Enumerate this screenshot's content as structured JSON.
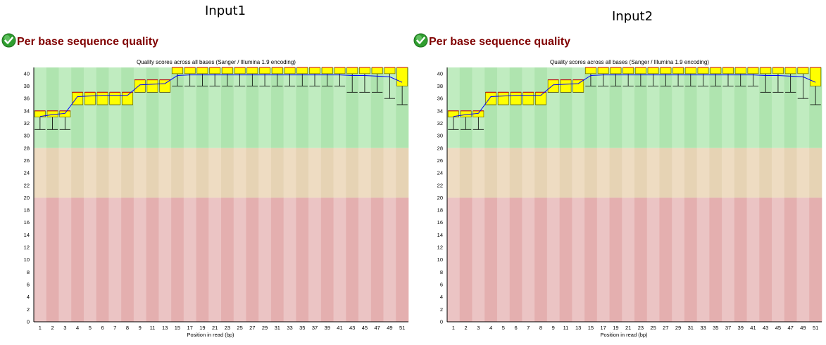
{
  "panels": [
    {
      "label": "Input1",
      "module_title": "Per base sequence quality",
      "status_icon": "pass-check-icon"
    },
    {
      "label": "Input2",
      "module_title": "Per base sequence quality",
      "status_icon": "pass-check-icon"
    }
  ],
  "colors": {
    "title": "#800000",
    "good_zone": [
      "#c0ecc0",
      "#afe4af"
    ],
    "warn_zone": [
      "#eedcc2",
      "#e6d3b4"
    ],
    "bad_zone": [
      "#ebc4c4",
      "#e4afaf"
    ],
    "box": "#ffff00",
    "box_stroke": "#666600",
    "whisker": "#000000",
    "median": "#cc0000",
    "mean_line": "#0000ff"
  },
  "chart_data": [
    {
      "type": "box",
      "title": "Quality scores across all bases (Sanger / Illumina 1.9 encoding)",
      "xlabel": "Position in read (bp)",
      "ylabel": "",
      "ylim": [
        0,
        41
      ],
      "yticks": [
        0,
        2,
        4,
        6,
        8,
        10,
        12,
        14,
        16,
        18,
        20,
        22,
        24,
        26,
        28,
        30,
        32,
        34,
        36,
        38,
        40
      ],
      "xticks": [
        "1",
        "2",
        "3",
        "4",
        "5",
        "6",
        "7",
        "8",
        "9",
        "11",
        "13",
        "15",
        "17",
        "19",
        "21",
        "23",
        "25",
        "27",
        "29",
        "31",
        "33",
        "35",
        "37",
        "39",
        "41",
        "43",
        "45",
        "47",
        "49",
        "51"
      ],
      "zones": {
        "good": [
          28,
          41
        ],
        "warn": [
          20,
          28
        ],
        "bad": [
          0,
          20
        ]
      },
      "boxes": [
        {
          "x": "1",
          "q1": 33,
          "q3": 34,
          "median": 34,
          "low": 31,
          "high": 34,
          "mean": 33.1
        },
        {
          "x": "2",
          "q1": 33,
          "q3": 34,
          "median": 34,
          "low": 31,
          "high": 34,
          "mean": 33.4
        },
        {
          "x": "3",
          "q1": 33,
          "q3": 34,
          "median": 34,
          "low": 31,
          "high": 34,
          "mean": 33.6
        },
        {
          "x": "4",
          "q1": 35,
          "q3": 37,
          "median": 37,
          "low": 35,
          "high": 37,
          "mean": 36.3
        },
        {
          "x": "5",
          "q1": 35,
          "q3": 37,
          "median": 37,
          "low": 35,
          "high": 37,
          "mean": 36.4
        },
        {
          "x": "6",
          "q1": 35,
          "q3": 37,
          "median": 37,
          "low": 35,
          "high": 37,
          "mean": 36.5
        },
        {
          "x": "7",
          "q1": 35,
          "q3": 37,
          "median": 37,
          "low": 35,
          "high": 37,
          "mean": 36.5
        },
        {
          "x": "8",
          "q1": 35,
          "q3": 37,
          "median": 37,
          "low": 35,
          "high": 37,
          "mean": 36.5
        },
        {
          "x": "9",
          "q1": 37,
          "q3": 39,
          "median": 39,
          "low": 37,
          "high": 39,
          "mean": 38.2
        },
        {
          "x": "10-11",
          "q1": 37,
          "q3": 39,
          "median": 39,
          "low": 37,
          "high": 39,
          "mean": 38.3
        },
        {
          "x": "12-13",
          "q1": 37,
          "q3": 39,
          "median": 39,
          "low": 37,
          "high": 39,
          "mean": 38.4
        },
        {
          "x": "14-15",
          "q1": 40,
          "q3": 41,
          "median": 41,
          "low": 38,
          "high": 41,
          "mean": 39.7
        },
        {
          "x": "16-17",
          "q1": 40,
          "q3": 41,
          "median": 41,
          "low": 38,
          "high": 41,
          "mean": 39.8
        },
        {
          "x": "18-19",
          "q1": 40,
          "q3": 41,
          "median": 41,
          "low": 38,
          "high": 41,
          "mean": 39.8
        },
        {
          "x": "20-21",
          "q1": 40,
          "q3": 41,
          "median": 41,
          "low": 38,
          "high": 41,
          "mean": 39.8
        },
        {
          "x": "22-23",
          "q1": 40,
          "q3": 41,
          "median": 41,
          "low": 38,
          "high": 41,
          "mean": 39.8
        },
        {
          "x": "24-25",
          "q1": 40,
          "q3": 41,
          "median": 41,
          "low": 38,
          "high": 41,
          "mean": 39.8
        },
        {
          "x": "26-27",
          "q1": 40,
          "q3": 41,
          "median": 41,
          "low": 38,
          "high": 41,
          "mean": 39.8
        },
        {
          "x": "28-29",
          "q1": 40,
          "q3": 41,
          "median": 41,
          "low": 38,
          "high": 41,
          "mean": 39.8
        },
        {
          "x": "30-31",
          "q1": 40,
          "q3": 41,
          "median": 41,
          "low": 38,
          "high": 41,
          "mean": 39.8
        },
        {
          "x": "32-33",
          "q1": 40,
          "q3": 41,
          "median": 41,
          "low": 38,
          "high": 41,
          "mean": 39.8
        },
        {
          "x": "34-35",
          "q1": 40,
          "q3": 41,
          "median": 41,
          "low": 38,
          "high": 41,
          "mean": 39.8
        },
        {
          "x": "36-37",
          "q1": 40,
          "q3": 41,
          "median": 41,
          "low": 38,
          "high": 41,
          "mean": 39.8
        },
        {
          "x": "38-39",
          "q1": 40,
          "q3": 41,
          "median": 41,
          "low": 38,
          "high": 41,
          "mean": 39.8
        },
        {
          "x": "40-41",
          "q1": 40,
          "q3": 41,
          "median": 41,
          "low": 38,
          "high": 41,
          "mean": 39.8
        },
        {
          "x": "42-43",
          "q1": 40,
          "q3": 41,
          "median": 41,
          "low": 37,
          "high": 41,
          "mean": 39.7
        },
        {
          "x": "44-45",
          "q1": 40,
          "q3": 41,
          "median": 41,
          "low": 37,
          "high": 41,
          "mean": 39.7
        },
        {
          "x": "46-47",
          "q1": 40,
          "q3": 41,
          "median": 41,
          "low": 37,
          "high": 41,
          "mean": 39.6
        },
        {
          "x": "48-49",
          "q1": 40,
          "q3": 41,
          "median": 41,
          "low": 36,
          "high": 41,
          "mean": 39.5
        },
        {
          "x": "50-51",
          "q1": 38,
          "q3": 41,
          "median": 41,
          "low": 35,
          "high": 41,
          "mean": 38.6
        }
      ]
    },
    {
      "type": "box",
      "title": "Quality scores across all bases (Sanger / Illumina 1.9 encoding)",
      "xlabel": "Position in read (bp)",
      "ylabel": "",
      "ylim": [
        0,
        41
      ],
      "yticks": [
        0,
        2,
        4,
        6,
        8,
        10,
        12,
        14,
        16,
        18,
        20,
        22,
        24,
        26,
        28,
        30,
        32,
        34,
        36,
        38,
        40
      ],
      "xticks": [
        "1",
        "2",
        "3",
        "4",
        "5",
        "6",
        "7",
        "8",
        "9",
        "11",
        "13",
        "15",
        "17",
        "19",
        "21",
        "23",
        "25",
        "27",
        "29",
        "31",
        "33",
        "35",
        "37",
        "39",
        "41",
        "43",
        "45",
        "47",
        "49",
        "51"
      ],
      "zones": {
        "good": [
          28,
          41
        ],
        "warn": [
          20,
          28
        ],
        "bad": [
          0,
          20
        ]
      },
      "boxes": [
        {
          "x": "1",
          "q1": 33,
          "q3": 34,
          "median": 34,
          "low": 31,
          "high": 34,
          "mean": 33.1
        },
        {
          "x": "2",
          "q1": 33,
          "q3": 34,
          "median": 34,
          "low": 31,
          "high": 34,
          "mean": 33.4
        },
        {
          "x": "3",
          "q1": 33,
          "q3": 34,
          "median": 34,
          "low": 31,
          "high": 34,
          "mean": 33.6
        },
        {
          "x": "4",
          "q1": 35,
          "q3": 37,
          "median": 37,
          "low": 35,
          "high": 37,
          "mean": 36.3
        },
        {
          "x": "5",
          "q1": 35,
          "q3": 37,
          "median": 37,
          "low": 35,
          "high": 37,
          "mean": 36.4
        },
        {
          "x": "6",
          "q1": 35,
          "q3": 37,
          "median": 37,
          "low": 35,
          "high": 37,
          "mean": 36.5
        },
        {
          "x": "7",
          "q1": 35,
          "q3": 37,
          "median": 37,
          "low": 35,
          "high": 37,
          "mean": 36.5
        },
        {
          "x": "8",
          "q1": 35,
          "q3": 37,
          "median": 37,
          "low": 35,
          "high": 37,
          "mean": 36.5
        },
        {
          "x": "9",
          "q1": 37,
          "q3": 39,
          "median": 39,
          "low": 37,
          "high": 39,
          "mean": 38.2
        },
        {
          "x": "10-11",
          "q1": 37,
          "q3": 39,
          "median": 39,
          "low": 37,
          "high": 39,
          "mean": 38.3
        },
        {
          "x": "12-13",
          "q1": 37,
          "q3": 39,
          "median": 39,
          "low": 37,
          "high": 39,
          "mean": 38.4
        },
        {
          "x": "14-15",
          "q1": 40,
          "q3": 41,
          "median": 41,
          "low": 38,
          "high": 41,
          "mean": 39.7
        },
        {
          "x": "16-17",
          "q1": 40,
          "q3": 41,
          "median": 41,
          "low": 38,
          "high": 41,
          "mean": 39.8
        },
        {
          "x": "18-19",
          "q1": 40,
          "q3": 41,
          "median": 41,
          "low": 38,
          "high": 41,
          "mean": 39.8
        },
        {
          "x": "20-21",
          "q1": 40,
          "q3": 41,
          "median": 41,
          "low": 38,
          "high": 41,
          "mean": 39.8
        },
        {
          "x": "22-23",
          "q1": 40,
          "q3": 41,
          "median": 41,
          "low": 38,
          "high": 41,
          "mean": 39.8
        },
        {
          "x": "24-25",
          "q1": 40,
          "q3": 41,
          "median": 41,
          "low": 38,
          "high": 41,
          "mean": 39.8
        },
        {
          "x": "26-27",
          "q1": 40,
          "q3": 41,
          "median": 41,
          "low": 38,
          "high": 41,
          "mean": 39.8
        },
        {
          "x": "28-29",
          "q1": 40,
          "q3": 41,
          "median": 41,
          "low": 38,
          "high": 41,
          "mean": 39.8
        },
        {
          "x": "30-31",
          "q1": 40,
          "q3": 41,
          "median": 41,
          "low": 38,
          "high": 41,
          "mean": 39.8
        },
        {
          "x": "32-33",
          "q1": 40,
          "q3": 41,
          "median": 41,
          "low": 38,
          "high": 41,
          "mean": 39.8
        },
        {
          "x": "34-35",
          "q1": 40,
          "q3": 41,
          "median": 41,
          "low": 38,
          "high": 41,
          "mean": 39.8
        },
        {
          "x": "36-37",
          "q1": 40,
          "q3": 41,
          "median": 41,
          "low": 38,
          "high": 41,
          "mean": 39.8
        },
        {
          "x": "38-39",
          "q1": 40,
          "q3": 41,
          "median": 41,
          "low": 38,
          "high": 41,
          "mean": 39.8
        },
        {
          "x": "40-41",
          "q1": 40,
          "q3": 41,
          "median": 41,
          "low": 38,
          "high": 41,
          "mean": 39.8
        },
        {
          "x": "42-43",
          "q1": 40,
          "q3": 41,
          "median": 41,
          "low": 37,
          "high": 41,
          "mean": 39.7
        },
        {
          "x": "44-45",
          "q1": 40,
          "q3": 41,
          "median": 41,
          "low": 37,
          "high": 41,
          "mean": 39.7
        },
        {
          "x": "46-47",
          "q1": 40,
          "q3": 41,
          "median": 41,
          "low": 37,
          "high": 41,
          "mean": 39.6
        },
        {
          "x": "48-49",
          "q1": 40,
          "q3": 41,
          "median": 41,
          "low": 36,
          "high": 41,
          "mean": 39.5
        },
        {
          "x": "50-51",
          "q1": 38,
          "q3": 41,
          "median": 41,
          "low": 35,
          "high": 41,
          "mean": 38.6
        }
      ]
    }
  ]
}
